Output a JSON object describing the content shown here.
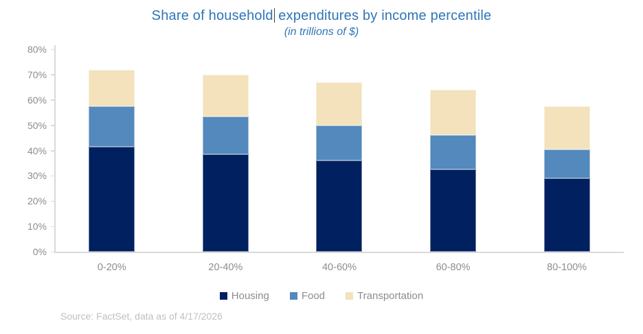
{
  "title": {
    "part1": "Share of household",
    "part2": "expenditures by income percentile",
    "full_title": "Share of household expenditures by income percentile",
    "subtitle": "(in trillions of $)"
  },
  "source": {
    "text": "Source: FactSet, data as of 4/17/2026"
  },
  "colors": {
    "title_text": "#2E75B6",
    "housing": "#002060",
    "food": "#5389BC",
    "transportation": "#F3E2BC",
    "axis_line": "#D9D9D9",
    "tick_label": "#8C8C8C",
    "legend_label": "#8C8C8C",
    "source_text": "#BFBFBF",
    "background": "#FFFFFF"
  },
  "chart_data": {
    "type": "bar",
    "stacked": true,
    "title": "Share of household expenditures by income percentile",
    "subtitle": "(in trillions of $)",
    "categories": [
      "0-20%",
      "20-40%",
      "40-60%",
      "60-80%",
      "80-100%"
    ],
    "series": [
      {
        "name": "Housing",
        "color": "#002060",
        "values": [
          41.5,
          38.5,
          36.0,
          32.5,
          29.0
        ]
      },
      {
        "name": "Food",
        "color": "#5389BC",
        "values": [
          16.0,
          15.0,
          14.0,
          13.5,
          11.5
        ]
      },
      {
        "name": "Transportation",
        "color": "#F3E2BC",
        "values": [
          14.5,
          16.5,
          17.0,
          18.0,
          17.0
        ]
      }
    ],
    "stack_totals": [
      72.0,
      70.0,
      67.0,
      64.0,
      57.5
    ],
    "xlabel": "",
    "ylabel": "",
    "y_ticks": [
      "0%",
      "10%",
      "20%",
      "30%",
      "40%",
      "50%",
      "60%",
      "70%",
      "80%"
    ],
    "ylim": [
      0,
      80
    ],
    "grid": false,
    "legend_position": "bottom"
  }
}
